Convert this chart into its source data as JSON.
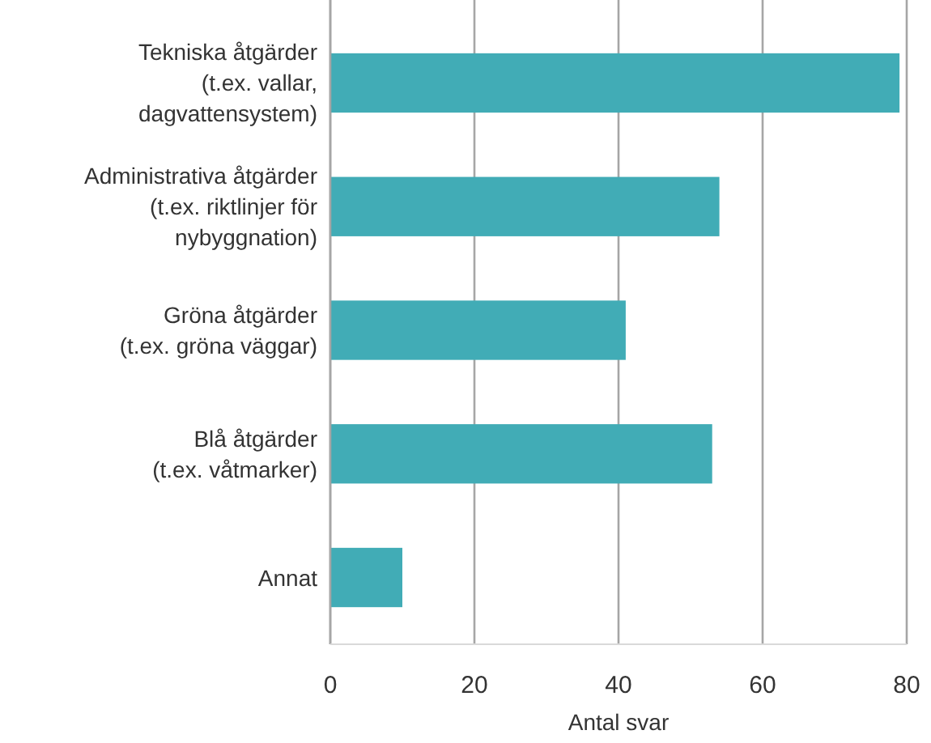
{
  "chart_data": {
    "type": "bar",
    "orientation": "horizontal",
    "xlabel": "Antal svar",
    "categories": [
      "Tekniska åtgärder\n(t.ex. vallar,\ndagvattensystem)",
      "Administrativa åtgärder\n(t.ex. riktlinjer för\nnybyggnation)",
      "Gröna åtgärder\n(t.ex. gröna väggar)",
      "Blå åtgärder\n(t.ex. våtmarker)",
      "Annat"
    ],
    "values": [
      79,
      54,
      41,
      53,
      10
    ],
    "color": "#41acb6",
    "xlim": [
      0,
      80
    ],
    "xticks": [
      0,
      20,
      40,
      60,
      80
    ],
    "grid": "x"
  }
}
